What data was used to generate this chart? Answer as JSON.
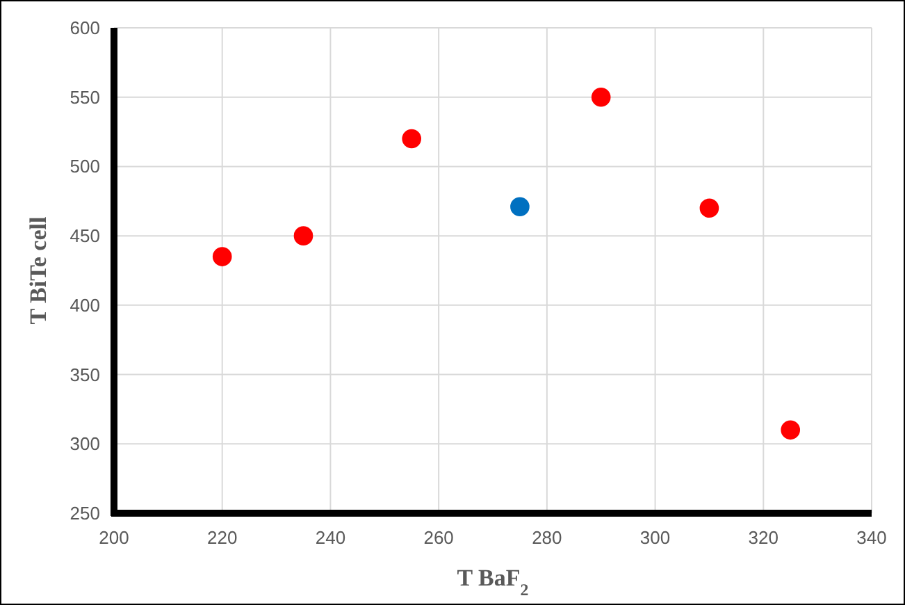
{
  "chart_data": {
    "type": "scatter",
    "xlabel": "T BaF$_{2}$",
    "ylabel": "T BiTe cell",
    "x": [
      220,
      235,
      255,
      275,
      290,
      310,
      325
    ],
    "values": [
      435,
      450,
      520,
      471,
      550,
      470,
      310
    ],
    "colors": [
      "#ff0000",
      "#ff0000",
      "#ff0000",
      "#0070c0",
      "#ff0000",
      "#ff0000",
      "#ff0000"
    ],
    "xlim": [
      200,
      340
    ],
    "xticks": [
      200,
      220,
      240,
      260,
      280,
      300,
      320,
      340
    ],
    "ylim": [
      250,
      600
    ],
    "yticks": [
      250,
      300,
      350,
      400,
      450,
      500,
      550,
      600
    ],
    "grid": true,
    "marker": "circle"
  }
}
